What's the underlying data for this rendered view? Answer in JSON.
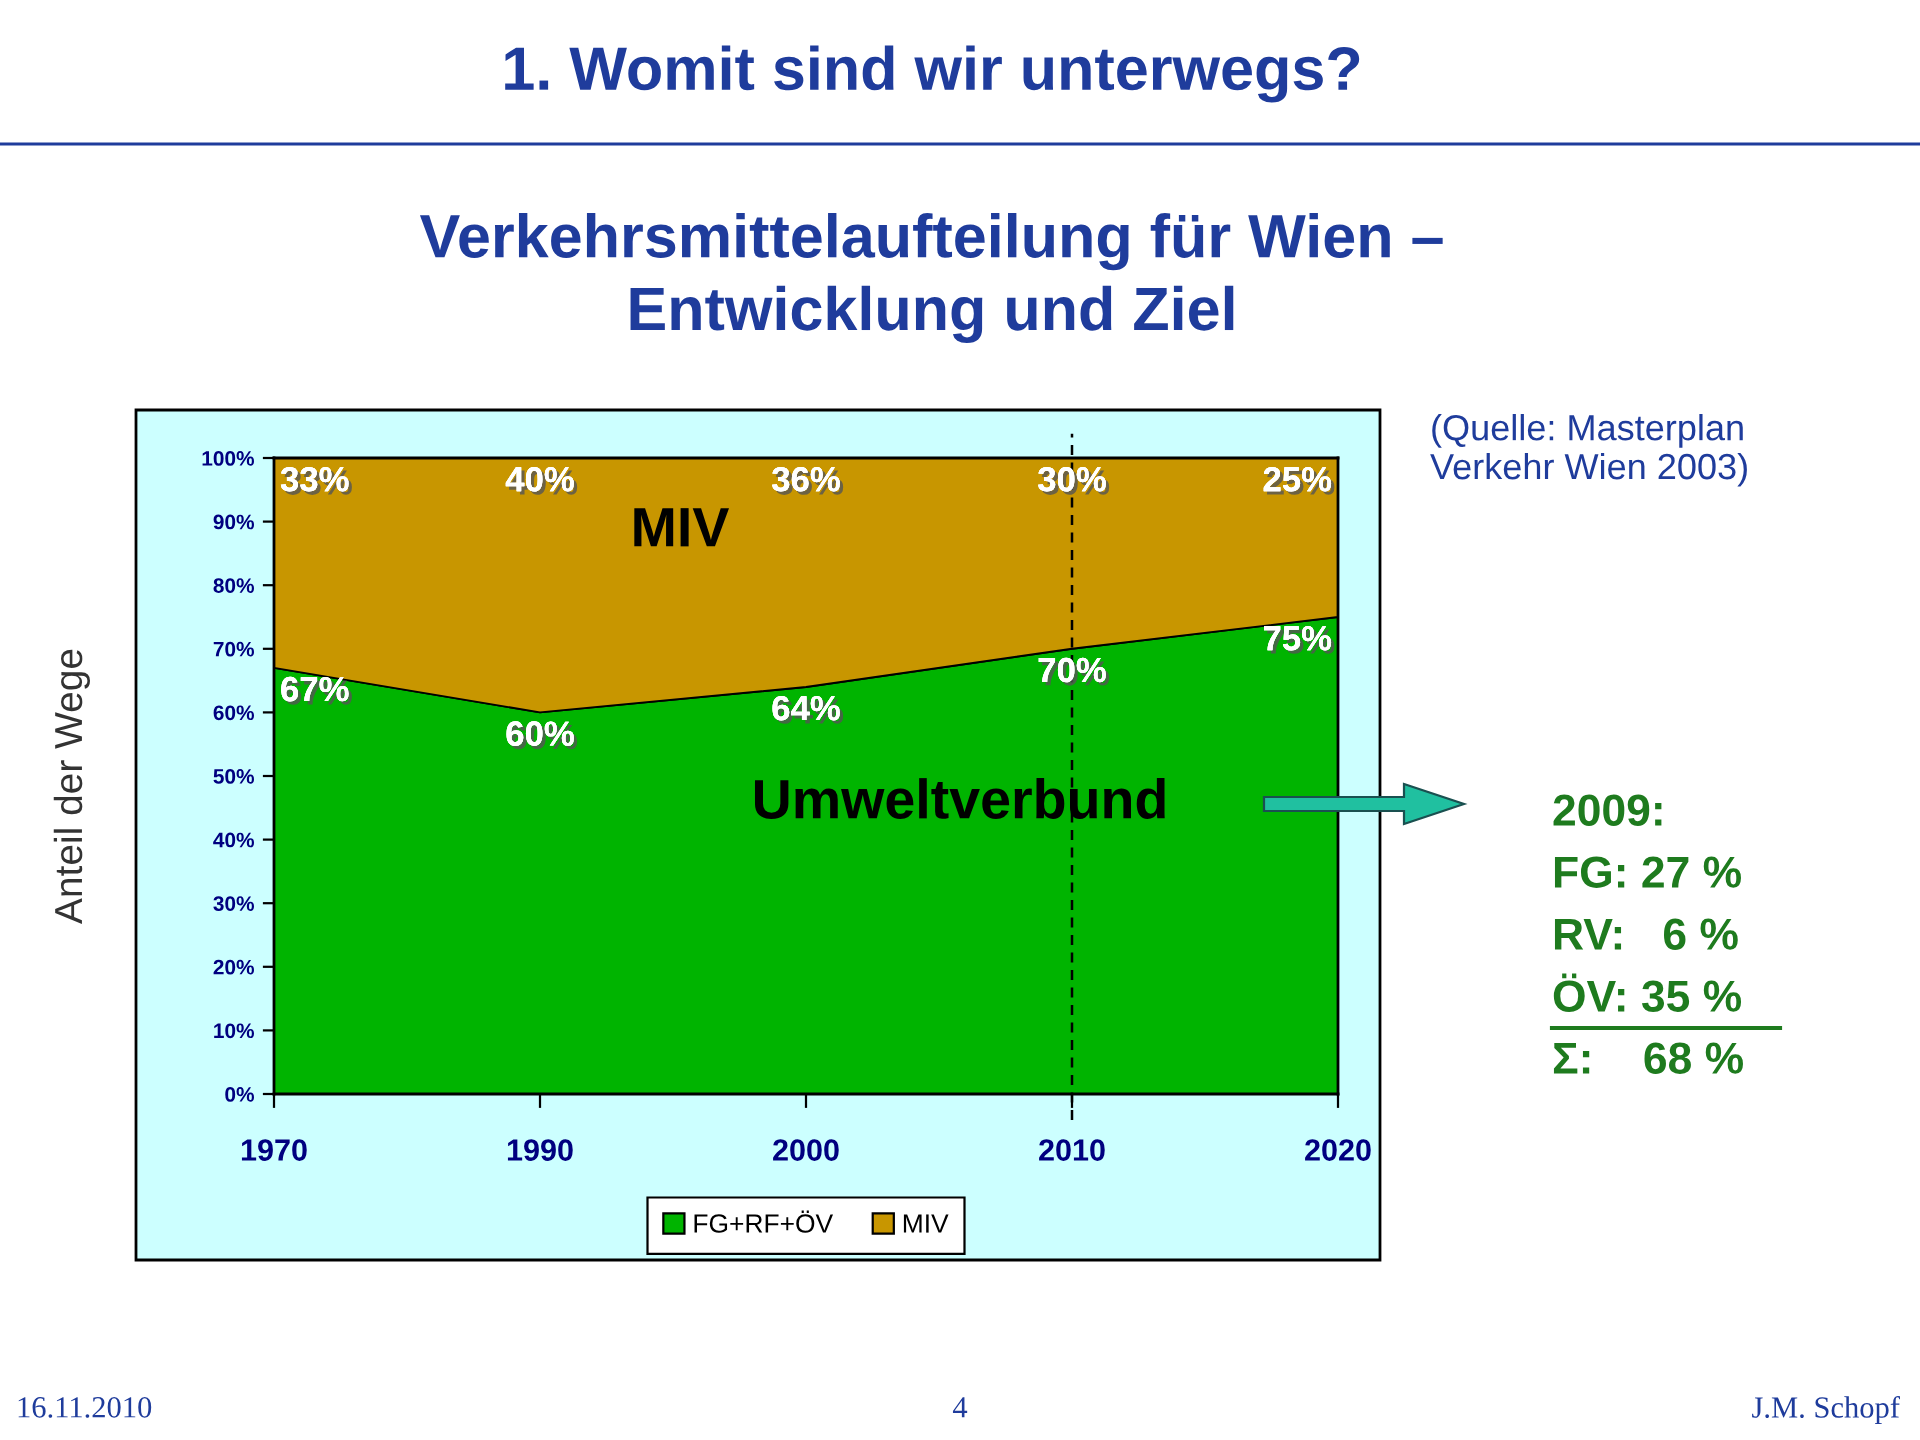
{
  "chart_data": {
    "type": "area",
    "stacked": true,
    "title": "1. Womit sind wir unterwegs?",
    "subtitle": "Verkehrsmittelaufteilung für Wien –\nEntwicklung und Ziel",
    "ylabel": "Anteil der Wege",
    "categories": [
      "1970",
      "1990",
      "2000",
      "2010",
      "2020"
    ],
    "series": [
      {
        "name": "FG+RF+ÖV",
        "color": "#00b400",
        "values": [
          67,
          60,
          64,
          70,
          75
        ],
        "value_labels": [
          "67%",
          "60%",
          "64%",
          "70%",
          "75%"
        ]
      },
      {
        "name": "MIV",
        "color": "#c89600",
        "values": [
          33,
          40,
          36,
          30,
          25
        ],
        "value_labels": [
          "33%",
          "40%",
          "36%",
          "30%",
          "25%"
        ]
      }
    ],
    "ylim": [
      0,
      100
    ],
    "yticks": [
      {
        "value": 0,
        "label": "0%"
      },
      {
        "value": 10,
        "label": "10%"
      },
      {
        "value": 20,
        "label": "20%"
      },
      {
        "value": 30,
        "label": "30%"
      },
      {
        "value": 40,
        "label": "40%"
      },
      {
        "value": 50,
        "label": "50%"
      },
      {
        "value": 60,
        "label": "60%"
      },
      {
        "value": 70,
        "label": "70%"
      },
      {
        "value": 80,
        "label": "80%"
      },
      {
        "value": 90,
        "label": "90%"
      },
      {
        "value": 100,
        "label": "100%"
      }
    ],
    "ref_lines": [
      {
        "axis": "x",
        "value": "2010",
        "color": "#000000",
        "line_style": "dashed"
      }
    ],
    "legend": "bottom",
    "annotations": [
      "(Quelle: Masterplan\nVerkehr Wien 2003)",
      "MIV",
      "Umweltverbund",
      "2009:\nFG: 27 %\nRV:   6 %\nÖV: 35 %\nΣ:    68 %",
      "16.11.2010",
      "4",
      "J.M. Schopf"
    ]
  }
}
